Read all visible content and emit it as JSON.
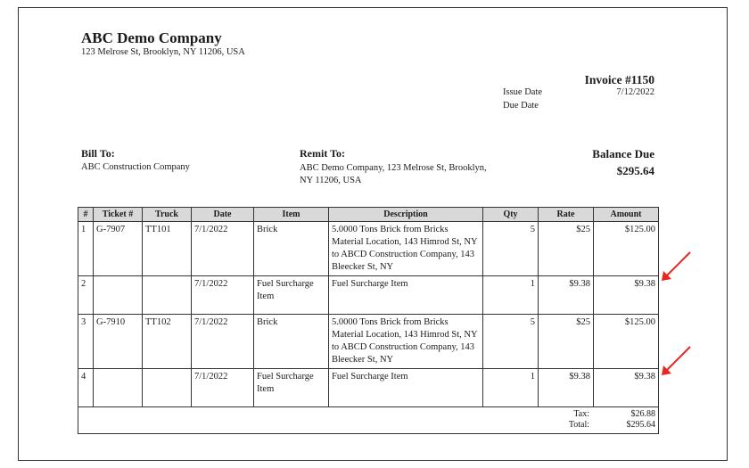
{
  "company": {
    "name": "ABC Demo Company",
    "address": "123 Melrose St, Brooklyn, NY 11206, USA"
  },
  "invoice": {
    "title": "Invoice #1150",
    "issue_date_label": "Issue Date",
    "issue_date": "7/12/2022",
    "due_date_label": "Due Date",
    "due_date": ""
  },
  "bill_to": {
    "label": "Bill To:",
    "value": "ABC Construction Company"
  },
  "remit_to": {
    "label": "Remit To:",
    "value": "ABC Demo Company, 123 Melrose St, Brooklyn, NY 11206, USA"
  },
  "balance_due": {
    "label": "Balance Due",
    "value": "$295.64"
  },
  "table": {
    "headers": [
      "#",
      "Ticket #",
      "Truck",
      "Date",
      "Item",
      "Description",
      "Qty",
      "Rate",
      "Amount"
    ],
    "rows": [
      [
        "1",
        "G-7907",
        "TT101",
        "7/1/2022",
        "Brick",
        "5.0000 Tons Brick from Bricks Material Location, 143 Himrod St, NY to ABCD Construction Company, 143 Bleecker St, NY",
        "5",
        "$25",
        "$125.00"
      ],
      [
        "2",
        "",
        "",
        "7/1/2022",
        "Fuel Surcharge Item",
        "Fuel Surcharge Item",
        "1",
        "$9.38",
        "$9.38"
      ],
      [
        "3",
        "G-7910",
        "TT102",
        "7/1/2022",
        "Brick",
        "5.0000 Tons Brick from Bricks Material Location, 143 Himrod St, NY to ABCD Construction Company, 143 Bleecker St, NY",
        "5",
        "$25",
        "$125.00"
      ],
      [
        "4",
        "",
        "",
        "7/1/2022",
        "Fuel Surcharge Item",
        "Fuel Surcharge Item",
        "1",
        "$9.38",
        "$9.38"
      ]
    ],
    "tax_label": "Tax:",
    "tax_value": "$26.88",
    "total_label": "Total:",
    "total_value": "$295.64"
  },
  "colors": {
    "annotation_arrow": "#e8261f",
    "header_bg": "#d9d9d9"
  }
}
